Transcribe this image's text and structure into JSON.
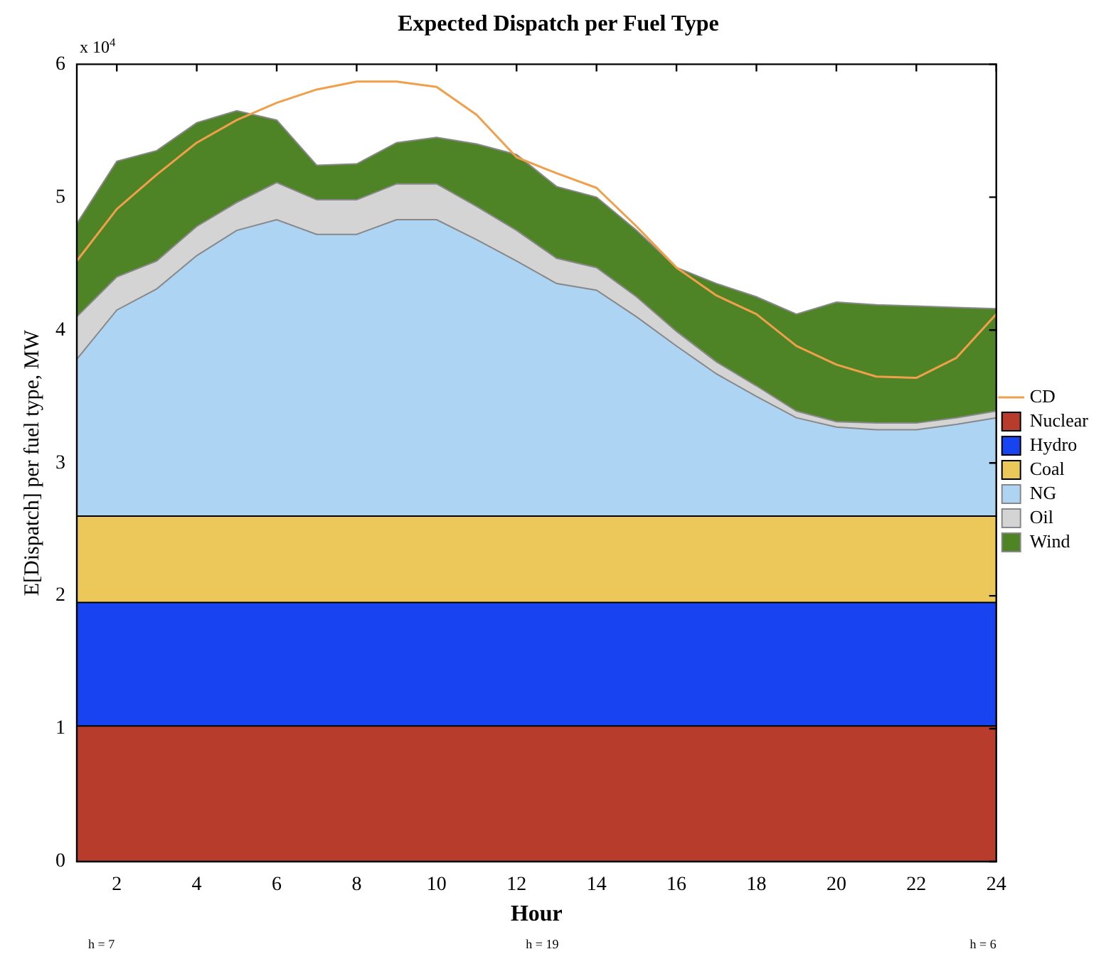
{
  "chart_data": {
    "type": "area",
    "title": "Expected Dispatch per Fuel Type",
    "xlabel": "Hour",
    "ylabel": "E[Dispatch] per fuel type, MW",
    "x": [
      1,
      2,
      3,
      4,
      5,
      6,
      7,
      8,
      9,
      10,
      11,
      12,
      13,
      14,
      15,
      16,
      17,
      18,
      19,
      20,
      21,
      22,
      23,
      24
    ],
    "stacked": true,
    "series": [
      {
        "name": "Nuclear",
        "color": "#b83c2b",
        "values": [
          1.02,
          1.02,
          1.02,
          1.02,
          1.02,
          1.02,
          1.02,
          1.02,
          1.02,
          1.02,
          1.02,
          1.02,
          1.02,
          1.02,
          1.02,
          1.02,
          1.02,
          1.02,
          1.02,
          1.02,
          1.02,
          1.02,
          1.02,
          1.02
        ]
      },
      {
        "name": "Hydro",
        "color": "#1843f0",
        "values": [
          0.93,
          0.93,
          0.93,
          0.93,
          0.93,
          0.93,
          0.93,
          0.93,
          0.93,
          0.93,
          0.93,
          0.93,
          0.93,
          0.93,
          0.93,
          0.93,
          0.93,
          0.93,
          0.93,
          0.93,
          0.93,
          0.93,
          0.93,
          0.93
        ]
      },
      {
        "name": "Coal",
        "color": "#ecc85a",
        "values": [
          0.65,
          0.65,
          0.65,
          0.65,
          0.65,
          0.65,
          0.65,
          0.65,
          0.65,
          0.65,
          0.65,
          0.65,
          0.65,
          0.65,
          0.65,
          0.65,
          0.65,
          0.65,
          0.65,
          0.65,
          0.65,
          0.65,
          0.65,
          0.65
        ]
      },
      {
        "name": "NG",
        "color": "#aed4f4",
        "values": [
          1.18,
          1.55,
          1.71,
          1.96,
          2.15,
          2.23,
          2.12,
          2.12,
          2.23,
          2.23,
          2.08,
          1.92,
          1.75,
          1.7,
          1.5,
          1.28,
          1.07,
          0.9,
          0.74,
          0.67,
          0.65,
          0.65,
          0.69,
          0.74
        ]
      },
      {
        "name": "Oil",
        "color": "#d4d4d4",
        "values": [
          0.32,
          0.25,
          0.21,
          0.22,
          0.21,
          0.28,
          0.26,
          0.26,
          0.27,
          0.27,
          0.25,
          0.23,
          0.19,
          0.17,
          0.15,
          0.11,
          0.09,
          0.08,
          0.05,
          0.04,
          0.05,
          0.05,
          0.05,
          0.05
        ]
      },
      {
        "name": "Wind",
        "color": "#4e8425",
        "values": [
          0.7,
          0.87,
          0.83,
          0.78,
          0.69,
          0.47,
          0.26,
          0.27,
          0.31,
          0.35,
          0.47,
          0.57,
          0.54,
          0.53,
          0.5,
          0.48,
          0.59,
          0.67,
          0.73,
          0.9,
          0.89,
          0.88,
          0.83,
          0.77
        ]
      },
      {
        "name": "CD",
        "type": "line",
        "color": "#f0a04a",
        "values": [
          4.52,
          4.91,
          5.17,
          5.41,
          5.58,
          5.71,
          5.81,
          5.87,
          5.87,
          5.83,
          5.62,
          5.3,
          5.18,
          5.07,
          4.78,
          4.47,
          4.26,
          4.12,
          3.88,
          3.74,
          3.65,
          3.64,
          3.79,
          4.12
        ]
      }
    ],
    "xlim": [
      1,
      24
    ],
    "xticks": [
      2,
      4,
      6,
      8,
      10,
      12,
      14,
      16,
      18,
      20,
      22,
      24
    ],
    "ylim": [
      0,
      6
    ],
    "yticks": [
      0,
      1,
      2,
      3,
      4,
      5,
      6
    ],
    "grid": false,
    "legend": "right",
    "line_style": "solid",
    "marker": "none",
    "annotations": [
      "x 10$^{4}$",
      "h = 7",
      "h = 19",
      "h = 6"
    ]
  }
}
